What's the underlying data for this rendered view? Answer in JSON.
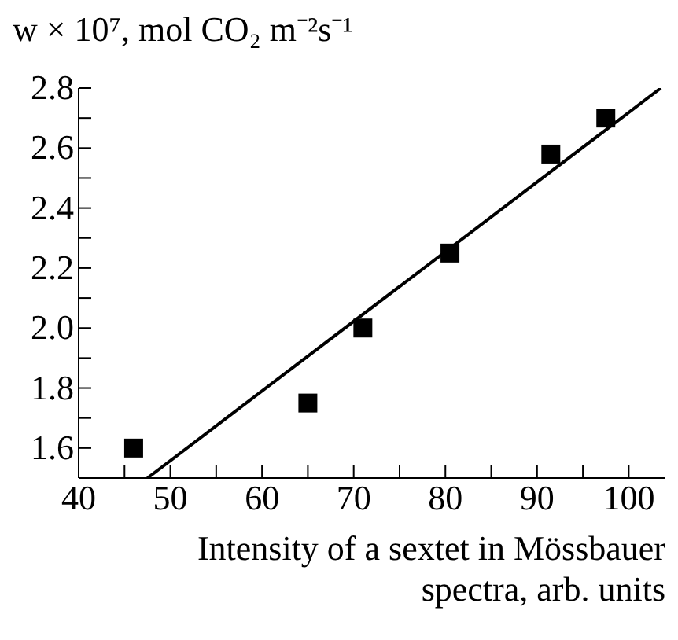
{
  "chart_data": {
    "type": "scatter",
    "ylabel": "w × 10⁷, mol CO₂ m⁻²s⁻¹",
    "xlabel": "Intensity of a sextet in Mössbauer spectra, arb. units",
    "marker": "square",
    "grid": false,
    "x": [
      46,
      65,
      71,
      80.5,
      91.5,
      97.5
    ],
    "xlim": [
      40,
      104
    ],
    "ylim": [
      1.5,
      2.8
    ],
    "xticks": [
      40,
      {
        "value": 45,
        "label": null
      },
      50,
      {
        "value": 55,
        "label": null
      },
      60,
      {
        "value": 65,
        "label": null
      },
      70,
      {
        "value": 75,
        "label": null
      },
      80,
      {
        "value": 85,
        "label": null
      },
      90,
      {
        "value": 95,
        "label": null
      },
      100
    ],
    "yticks": [
      {
        "value": 1.5,
        "label": null
      },
      1.6,
      {
        "value": 1.7,
        "label": null
      },
      1.8,
      {
        "value": 1.9,
        "label": null
      },
      {
        "value": 2,
        "label": "2.0"
      },
      {
        "value": 2.1,
        "label": null
      },
      2.2,
      {
        "value": 2.3,
        "label": null
      },
      2.4,
      {
        "value": 2.5,
        "label": null
      },
      2.6,
      {
        "value": 2.7,
        "label": null
      },
      2.8
    ],
    "series": [
      {
        "color": "#000000",
        "values": [
          1.6,
          1.75,
          2.0,
          2.25,
          2.58,
          2.7
        ]
      },
      {
        "type": "line",
        "color": "#000000",
        "marker": "none",
        "x": [
          47.5,
          103.5
        ],
        "values": [
          1.5,
          2.8
        ]
      }
    ]
  }
}
